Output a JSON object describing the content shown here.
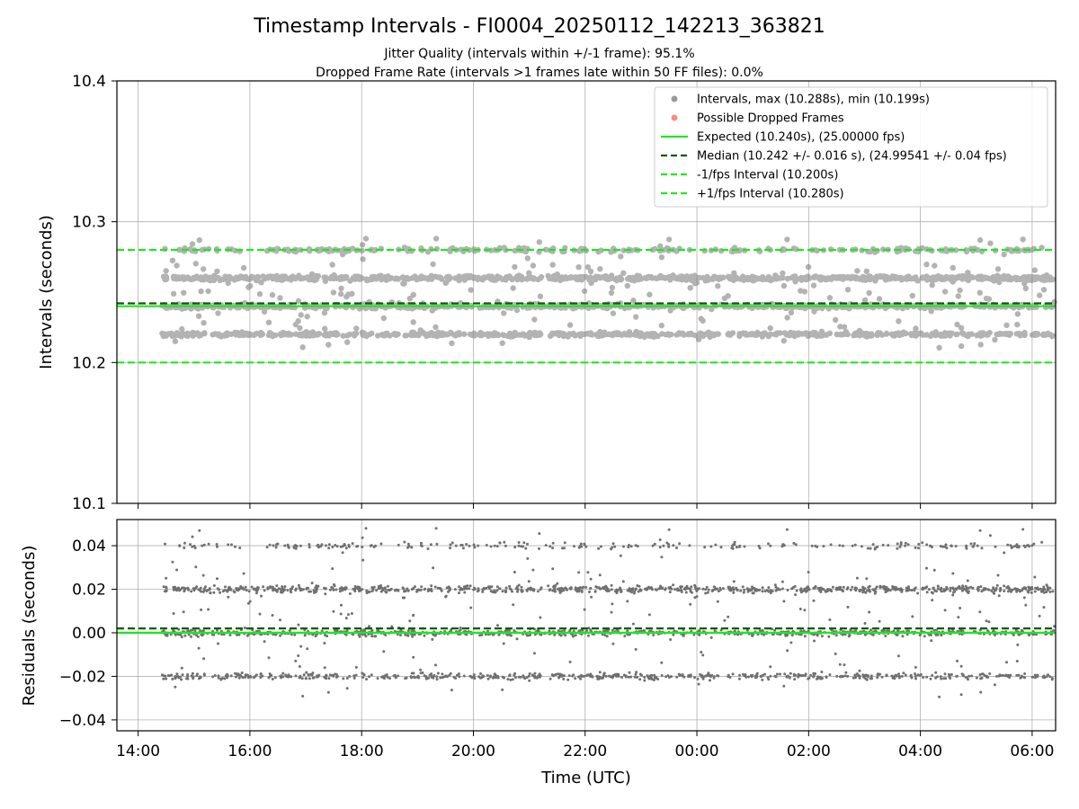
{
  "figure": {
    "title": "Timestamp Intervals - FI0004_20250112_142213_363821",
    "subtitle1": "Jitter Quality (intervals within +/-1 frame): 95.1%",
    "subtitle2": "Dropped Frame Rate (intervals >1 frames late within 50 FF files): 0.0%"
  },
  "chart_data": [
    {
      "type": "scatter",
      "panel": "intervals",
      "ylabel": "Intervals (seconds)",
      "ylim": [
        10.1,
        10.4
      ],
      "yticks": [
        10.1,
        10.2,
        10.3,
        10.4
      ],
      "ytick_labels": [
        "10.1",
        "10.2",
        "10.3",
        "10.4"
      ],
      "grid": true,
      "legend_position": "top-right",
      "time_start": "14:26 UTC",
      "time_end": "06:25 UTC",
      "interval_levels": [
        10.22,
        10.24,
        10.26,
        10.28
      ],
      "level_weights": [
        0.22,
        0.33,
        0.35,
        0.1
      ],
      "max_interval": 10.288,
      "min_interval": 10.199,
      "series": [
        {
          "name": "Intervals, max (10.288s), min (10.199s)",
          "kind": "points",
          "color": "#808080"
        },
        {
          "name": "Possible Dropped Frames",
          "kind": "points",
          "color": "#ff6b6b"
        },
        {
          "name": "Expected (10.240s), (25.00000 fps)",
          "kind": "hline",
          "y": 10.24,
          "color": "#1ee81e",
          "style": "solid"
        },
        {
          "name": "Median (10.242 +/- 0.016 s), (24.99541 +/- 0.04 fps)",
          "kind": "hline",
          "y": 10.242,
          "color": "#0a5a0a",
          "style": "dashed"
        },
        {
          "name": "-1/fps Interval (10.200s)",
          "kind": "hline",
          "y": 10.2,
          "color": "#1ee81e",
          "style": "dashed"
        },
        {
          "name": "+1/fps Interval (10.280s)",
          "kind": "hline",
          "y": 10.28,
          "color": "#1ee81e",
          "style": "dashed"
        }
      ]
    },
    {
      "type": "scatter",
      "panel": "residuals",
      "ylabel": "Residuals (seconds)",
      "xlabel": "Time (UTC)",
      "ylim": [
        -0.045,
        0.052
      ],
      "yticks": [
        -0.04,
        -0.02,
        0.0,
        0.02,
        0.04
      ],
      "ytick_labels": [
        "−0.04",
        "−0.02",
        "0.00",
        "0.02",
        "0.04"
      ],
      "xtick_labels": [
        "14:00",
        "16:00",
        "18:00",
        "20:00",
        "22:00",
        "00:00",
        "02:00",
        "04:00",
        "06:00"
      ],
      "grid": true,
      "residual_levels": [
        -0.02,
        0.0,
        0.02,
        0.04
      ],
      "level_weights": [
        0.22,
        0.33,
        0.35,
        0.1
      ],
      "expected_residual": 0.0,
      "median_residual": 0.002
    }
  ]
}
